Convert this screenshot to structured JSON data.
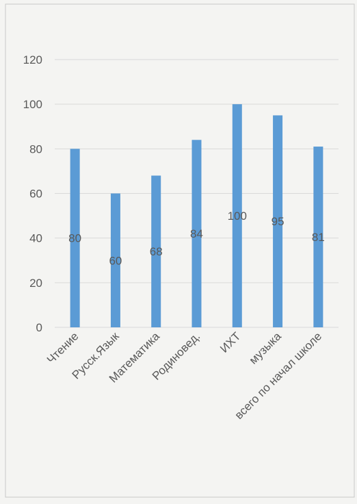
{
  "chart_data": {
    "type": "bar",
    "categories": [
      "Чтение",
      "Русск.Язык",
      "Математика",
      "Родиновед.",
      "ИХТ",
      "музыка",
      "всего по начал школе"
    ],
    "values": [
      80,
      60,
      68,
      84,
      100,
      95,
      81
    ],
    "data_labels": [
      "80",
      "60",
      "68",
      "84",
      "100",
      "95",
      "81"
    ],
    "ylim": [
      0,
      120
    ],
    "yticks": [
      "0",
      "20",
      "40",
      "60",
      "80",
      "100",
      "120"
    ],
    "grid": true,
    "legend": "none",
    "colors": {
      "bar": "#5b9bd5",
      "text": "#595959",
      "grid": "#d9d9d9",
      "background": "#f4f4f2",
      "border": "#c8c8c8"
    }
  }
}
